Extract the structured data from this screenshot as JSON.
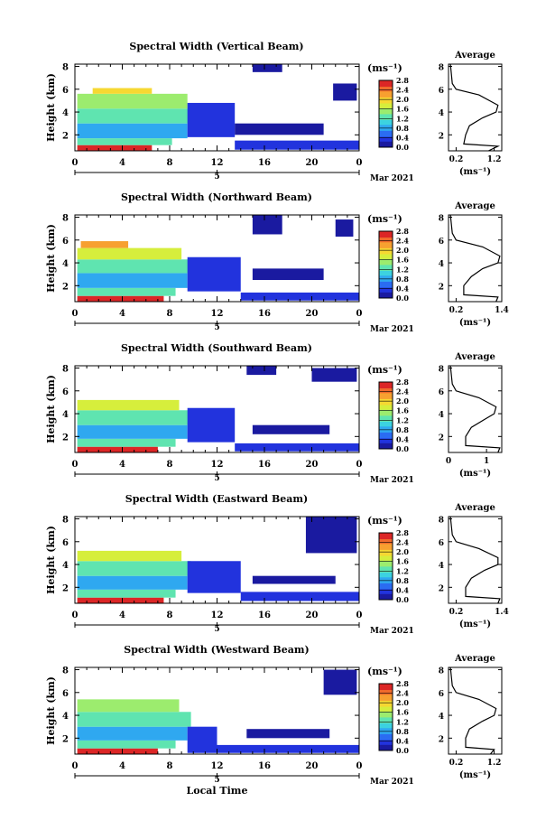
{
  "figure": {
    "x_axis_label": "Local Time",
    "unit_label": "(ms⁻¹)",
    "date_label": "Mar 2021",
    "day_label": "5",
    "avg_title": "Average",
    "colorbar_ticks": [
      "0.0",
      "0.4",
      "0.8",
      "1.2",
      "1.6",
      "2.0",
      "2.4",
      "2.8"
    ],
    "colormap": [
      "#1a1aa0",
      "#2233dd",
      "#2b6cf2",
      "#2fa8f0",
      "#3cd2e0",
      "#5fe4b0",
      "#9cec6e",
      "#d6ee3c",
      "#f6d832",
      "#f7a030",
      "#f06a2c",
      "#dc2626"
    ],
    "time_ticks": [
      "0",
      "4",
      "8",
      "12",
      "16",
      "20",
      "0"
    ],
    "height_ticks": [
      "2",
      "4",
      "6",
      "8"
    ]
  },
  "chart_data": [
    {
      "type": "heatmap",
      "title": "Spectral Width (Vertical Beam)",
      "xlabel": "",
      "ylabel": "Height (km)",
      "xlim": [
        0,
        24
      ],
      "ylim": [
        0.6,
        8.2
      ],
      "clim": [
        0,
        2.8
      ],
      "regions": [
        {
          "t0": 0.2,
          "t1": 6.5,
          "h0": 0.6,
          "h1": 1.1,
          "level": 2.6
        },
        {
          "t0": 0.2,
          "t1": 8.2,
          "h0": 1.1,
          "h1": 1.7,
          "level": 1.3
        },
        {
          "t0": 0.2,
          "t1": 9.5,
          "h0": 1.7,
          "h1": 3.0,
          "level": 0.9
        },
        {
          "t0": 0.2,
          "t1": 9.8,
          "h0": 3.0,
          "h1": 4.3,
          "level": 1.2
        },
        {
          "t0": 0.2,
          "t1": 9.5,
          "h0": 4.3,
          "h1": 5.6,
          "level": 1.6
        },
        {
          "t0": 1.5,
          "t1": 6.5,
          "h0": 5.6,
          "h1": 6.1,
          "level": 2.0
        },
        {
          "t0": 9.5,
          "t1": 13.5,
          "h0": 1.8,
          "h1": 4.8,
          "level": 0.3
        },
        {
          "t0": 13.5,
          "t1": 24,
          "h0": 0.7,
          "h1": 1.5,
          "level": 0.4
        },
        {
          "t0": 13.5,
          "t1": 21.0,
          "h0": 2.0,
          "h1": 3.0,
          "level": 0.2
        },
        {
          "t0": 15.0,
          "t1": 17.5,
          "h0": 7.5,
          "h1": 8.2,
          "level": 0.2
        },
        {
          "t0": 21.8,
          "t1": 23.8,
          "h0": 5.0,
          "h1": 6.5,
          "level": 0.2
        }
      ],
      "average": {
        "xlim": [
          0,
          1.4
        ],
        "xticks": [
          "0.2",
          "1.2"
        ],
        "profile": [
          [
            1.05,
            0.6
          ],
          [
            1.3,
            1.0
          ],
          [
            0.4,
            1.2
          ],
          [
            0.45,
            2.0
          ],
          [
            0.55,
            2.8
          ],
          [
            0.9,
            3.5
          ],
          [
            1.25,
            4.0
          ],
          [
            1.3,
            4.6
          ],
          [
            0.8,
            5.5
          ],
          [
            0.2,
            6.0
          ],
          [
            0.1,
            6.5
          ],
          [
            0.05,
            8.2
          ]
        ]
      }
    },
    {
      "type": "heatmap",
      "title": "Spectral Width (Northward Beam)",
      "xlabel": "",
      "ylabel": "Height (km)",
      "xlim": [
        0,
        24
      ],
      "ylim": [
        0.6,
        8.2
      ],
      "clim": [
        0,
        2.8
      ],
      "regions": [
        {
          "t0": 0.2,
          "t1": 7.5,
          "h0": 0.6,
          "h1": 1.1,
          "level": 2.6
        },
        {
          "t0": 0.2,
          "t1": 8.5,
          "h0": 1.1,
          "h1": 1.8,
          "level": 1.3
        },
        {
          "t0": 0.2,
          "t1": 9.5,
          "h0": 1.8,
          "h1": 3.1,
          "level": 0.9
        },
        {
          "t0": 0.2,
          "t1": 9.8,
          "h0": 3.1,
          "h1": 4.3,
          "level": 1.3
        },
        {
          "t0": 0.2,
          "t1": 9.0,
          "h0": 4.3,
          "h1": 5.3,
          "level": 1.7
        },
        {
          "t0": 0.5,
          "t1": 4.5,
          "h0": 5.3,
          "h1": 5.9,
          "level": 2.1
        },
        {
          "t0": 9.5,
          "t1": 14.0,
          "h0": 1.5,
          "h1": 4.5,
          "level": 0.3
        },
        {
          "t0": 14.0,
          "t1": 24,
          "h0": 0.7,
          "h1": 1.4,
          "level": 0.4
        },
        {
          "t0": 15.0,
          "t1": 21.0,
          "h0": 2.5,
          "h1": 3.5,
          "level": 0.2
        },
        {
          "t0": 15.0,
          "t1": 17.5,
          "h0": 6.5,
          "h1": 8.2,
          "level": 0.2
        },
        {
          "t0": 22.0,
          "t1": 23.5,
          "h0": 6.3,
          "h1": 7.8,
          "level": 0.2
        }
      ],
      "average": {
        "xlim": [
          0,
          1.4
        ],
        "xticks": [
          "0.2",
          "1.4"
        ],
        "profile": [
          [
            1.25,
            0.6
          ],
          [
            1.3,
            1.0
          ],
          [
            0.4,
            1.2
          ],
          [
            0.4,
            2.0
          ],
          [
            0.6,
            2.8
          ],
          [
            0.9,
            3.5
          ],
          [
            1.3,
            4.0
          ],
          [
            1.35,
            4.6
          ],
          [
            0.9,
            5.4
          ],
          [
            0.2,
            6.0
          ],
          [
            0.1,
            6.6
          ],
          [
            0.05,
            8.2
          ]
        ]
      }
    },
    {
      "type": "heatmap",
      "title": "Spectral Width (Southward Beam)",
      "xlabel": "",
      "ylabel": "Height (km)",
      "xlim": [
        0,
        24
      ],
      "ylim": [
        0.6,
        8.2
      ],
      "clim": [
        0,
        2.8
      ],
      "regions": [
        {
          "t0": 0.2,
          "t1": 7.0,
          "h0": 0.6,
          "h1": 1.1,
          "level": 2.6
        },
        {
          "t0": 0.2,
          "t1": 8.5,
          "h0": 1.1,
          "h1": 1.8,
          "level": 1.3
        },
        {
          "t0": 0.2,
          "t1": 9.5,
          "h0": 1.8,
          "h1": 3.0,
          "level": 0.9
        },
        {
          "t0": 0.2,
          "t1": 9.8,
          "h0": 3.0,
          "h1": 4.3,
          "level": 1.3
        },
        {
          "t0": 0.2,
          "t1": 8.8,
          "h0": 4.3,
          "h1": 5.2,
          "level": 1.7
        },
        {
          "t0": 9.5,
          "t1": 13.5,
          "h0": 1.5,
          "h1": 4.5,
          "level": 0.3
        },
        {
          "t0": 13.5,
          "t1": 24,
          "h0": 0.7,
          "h1": 1.4,
          "level": 0.4
        },
        {
          "t0": 15.0,
          "t1": 21.5,
          "h0": 2.2,
          "h1": 3.0,
          "level": 0.2
        },
        {
          "t0": 14.5,
          "t1": 17.0,
          "h0": 7.4,
          "h1": 8.2,
          "level": 0.2
        },
        {
          "t0": 20.0,
          "t1": 23.8,
          "h0": 6.8,
          "h1": 8.0,
          "level": 0.2
        }
      ],
      "average": {
        "xlim": [
          0,
          1.4
        ],
        "xticks": [
          "0",
          "1"
        ],
        "profile": [
          [
            1.3,
            0.6
          ],
          [
            1.35,
            1.0
          ],
          [
            0.45,
            1.2
          ],
          [
            0.45,
            2.0
          ],
          [
            0.6,
            2.8
          ],
          [
            0.95,
            3.5
          ],
          [
            1.2,
            4.0
          ],
          [
            1.25,
            4.6
          ],
          [
            0.8,
            5.4
          ],
          [
            0.2,
            6.0
          ],
          [
            0.1,
            6.6
          ],
          [
            0.05,
            8.2
          ]
        ]
      }
    },
    {
      "type": "heatmap",
      "title": "Spectral Width (Eastward Beam)",
      "xlabel": "",
      "ylabel": "Height (km)",
      "xlim": [
        0,
        24
      ],
      "ylim": [
        0.6,
        8.2
      ],
      "clim": [
        0,
        2.8
      ],
      "regions": [
        {
          "t0": 0.2,
          "t1": 7.5,
          "h0": 0.6,
          "h1": 1.1,
          "level": 2.6
        },
        {
          "t0": 0.2,
          "t1": 8.5,
          "h0": 1.1,
          "h1": 1.8,
          "level": 1.3
        },
        {
          "t0": 0.2,
          "t1": 9.5,
          "h0": 1.8,
          "h1": 3.0,
          "level": 0.9
        },
        {
          "t0": 0.2,
          "t1": 9.8,
          "h0": 3.0,
          "h1": 4.3,
          "level": 1.3
        },
        {
          "t0": 0.2,
          "t1": 9.0,
          "h0": 4.3,
          "h1": 5.2,
          "level": 1.7
        },
        {
          "t0": 9.5,
          "t1": 14.0,
          "h0": 1.5,
          "h1": 4.3,
          "level": 0.3
        },
        {
          "t0": 14.0,
          "t1": 24,
          "h0": 0.8,
          "h1": 1.6,
          "level": 0.4
        },
        {
          "t0": 15.0,
          "t1": 22.0,
          "h0": 2.3,
          "h1": 3.0,
          "level": 0.2
        },
        {
          "t0": 19.5,
          "t1": 23.8,
          "h0": 5.0,
          "h1": 8.2,
          "level": 0.2
        }
      ],
      "average": {
        "xlim": [
          0,
          1.4
        ],
        "xticks": [
          "0.2",
          "1.4"
        ],
        "profile": [
          [
            1.3,
            0.6
          ],
          [
            1.35,
            1.0
          ],
          [
            0.45,
            1.2
          ],
          [
            0.45,
            2.0
          ],
          [
            0.6,
            2.8
          ],
          [
            0.95,
            3.5
          ],
          [
            1.3,
            4.0
          ],
          [
            1.3,
            4.6
          ],
          [
            0.8,
            5.4
          ],
          [
            0.2,
            6.0
          ],
          [
            0.1,
            6.6
          ],
          [
            0.05,
            8.2
          ]
        ]
      }
    },
    {
      "type": "heatmap",
      "title": "Spectral Width (Westward Beam)",
      "xlabel": "Local Time",
      "ylabel": "Height (km)",
      "xlim": [
        0,
        24
      ],
      "ylim": [
        0.6,
        8.2
      ],
      "clim": [
        0,
        2.8
      ],
      "regions": [
        {
          "t0": 0.2,
          "t1": 7.0,
          "h0": 0.6,
          "h1": 1.1,
          "level": 2.6
        },
        {
          "t0": 0.2,
          "t1": 8.5,
          "h0": 1.1,
          "h1": 1.8,
          "level": 1.3
        },
        {
          "t0": 0.2,
          "t1": 9.5,
          "h0": 1.8,
          "h1": 3.0,
          "level": 0.9
        },
        {
          "t0": 0.2,
          "t1": 9.8,
          "h0": 3.0,
          "h1": 4.3,
          "level": 1.2
        },
        {
          "t0": 0.2,
          "t1": 8.8,
          "h0": 4.3,
          "h1": 5.4,
          "level": 1.6
        },
        {
          "t0": 9.5,
          "t1": 12.0,
          "h0": 0.7,
          "h1": 3.0,
          "level": 0.3
        },
        {
          "t0": 12.0,
          "t1": 24,
          "h0": 0.7,
          "h1": 1.4,
          "level": 0.4
        },
        {
          "t0": 14.5,
          "t1": 21.5,
          "h0": 2.0,
          "h1": 2.8,
          "level": 0.2
        },
        {
          "t0": 21.0,
          "t1": 23.8,
          "h0": 5.8,
          "h1": 8.0,
          "level": 0.2
        }
      ],
      "average": {
        "xlim": [
          0,
          1.4
        ],
        "xticks": [
          "0.2",
          "1.2"
        ],
        "profile": [
          [
            1.1,
            0.6
          ],
          [
            1.2,
            1.0
          ],
          [
            0.45,
            1.2
          ],
          [
            0.45,
            2.0
          ],
          [
            0.55,
            2.8
          ],
          [
            0.9,
            3.5
          ],
          [
            1.2,
            4.0
          ],
          [
            1.25,
            4.6
          ],
          [
            0.8,
            5.4
          ],
          [
            0.2,
            6.0
          ],
          [
            0.1,
            6.6
          ],
          [
            0.05,
            8.2
          ]
        ]
      }
    }
  ]
}
